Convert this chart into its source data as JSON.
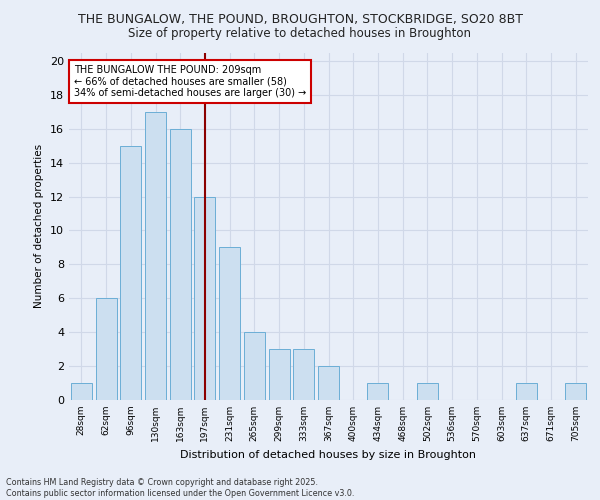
{
  "title1": "THE BUNGALOW, THE POUND, BROUGHTON, STOCKBRIDGE, SO20 8BT",
  "title2": "Size of property relative to detached houses in Broughton",
  "xlabel": "Distribution of detached houses by size in Broughton",
  "ylabel": "Number of detached properties",
  "categories": [
    "28sqm",
    "62sqm",
    "96sqm",
    "130sqm",
    "163sqm",
    "197sqm",
    "231sqm",
    "265sqm",
    "299sqm",
    "333sqm",
    "367sqm",
    "400sqm",
    "434sqm",
    "468sqm",
    "502sqm",
    "536sqm",
    "570sqm",
    "603sqm",
    "637sqm",
    "671sqm",
    "705sqm"
  ],
  "values": [
    1,
    6,
    15,
    17,
    16,
    12,
    9,
    4,
    3,
    3,
    2,
    0,
    1,
    0,
    1,
    0,
    0,
    0,
    1,
    0,
    1
  ],
  "bar_color": "#ccdff0",
  "bar_edge_color": "#6baed6",
  "grid_color": "#d0d8e8",
  "vline_color": "#8b0000",
  "annotation_text": "THE BUNGALOW THE POUND: 209sqm\n← 66% of detached houses are smaller (58)\n34% of semi-detached houses are larger (30) →",
  "annotation_box_color": "white",
  "annotation_box_edge": "#cc0000",
  "ylim": [
    0,
    20.5
  ],
  "yticks": [
    0,
    2,
    4,
    6,
    8,
    10,
    12,
    14,
    16,
    18,
    20
  ],
  "footer": "Contains HM Land Registry data © Crown copyright and database right 2025.\nContains public sector information licensed under the Open Government Licence v3.0.",
  "background_color": "#e8eef8",
  "vline_bar_index": 5
}
